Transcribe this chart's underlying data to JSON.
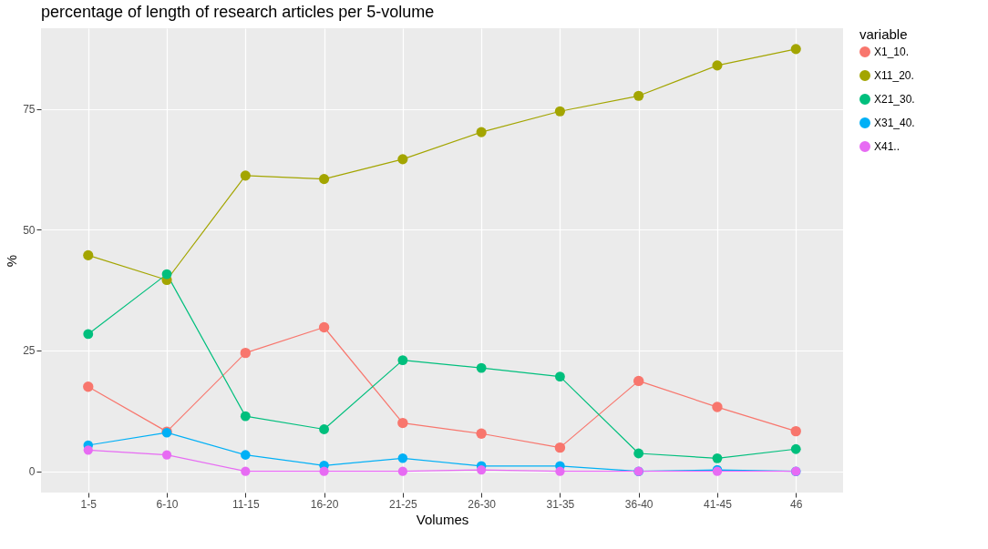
{
  "chart_data": {
    "type": "line",
    "title": "percentage of length of research articles per 5-volume",
    "xlabel": "Volumes",
    "ylabel": "%",
    "legend_title": "variable",
    "categories": [
      "1-5",
      "6-10",
      "11-15",
      "16-20",
      "21-25",
      "26-30",
      "31-35",
      "36-40",
      "41-45",
      "46"
    ],
    "series": [
      {
        "name": "X1_10.",
        "color": "#f8766d",
        "values": [
          17.5,
          8.2,
          24.5,
          29.8,
          10.0,
          7.8,
          4.9,
          18.7,
          13.3,
          8.3
        ]
      },
      {
        "name": "X11_20.",
        "color": "#a3a500",
        "values": [
          44.7,
          39.6,
          61.2,
          60.5,
          64.6,
          70.2,
          74.5,
          77.7,
          84.0,
          87.4
        ]
      },
      {
        "name": "X21_30.",
        "color": "#00bf7d",
        "values": [
          28.4,
          40.8,
          11.4,
          8.7,
          23.0,
          21.4,
          19.6,
          3.7,
          2.7,
          4.6
        ]
      },
      {
        "name": "X31_40.",
        "color": "#00b0f6",
        "values": [
          5.4,
          8.0,
          3.4,
          1.2,
          2.7,
          1.1,
          1.1,
          0,
          0.3,
          0
        ]
      },
      {
        "name": "X41..",
        "color": "#e76bf3",
        "values": [
          4.4,
          3.4,
          0,
          0,
          0,
          0.3,
          0,
          0,
          0,
          0
        ]
      }
    ],
    "ylim": [
      -4.4,
      91.7
    ],
    "yticks": [
      0,
      25,
      50,
      75
    ],
    "grid": true,
    "legend": "right",
    "marker": "circle",
    "line_style": "solid"
  }
}
